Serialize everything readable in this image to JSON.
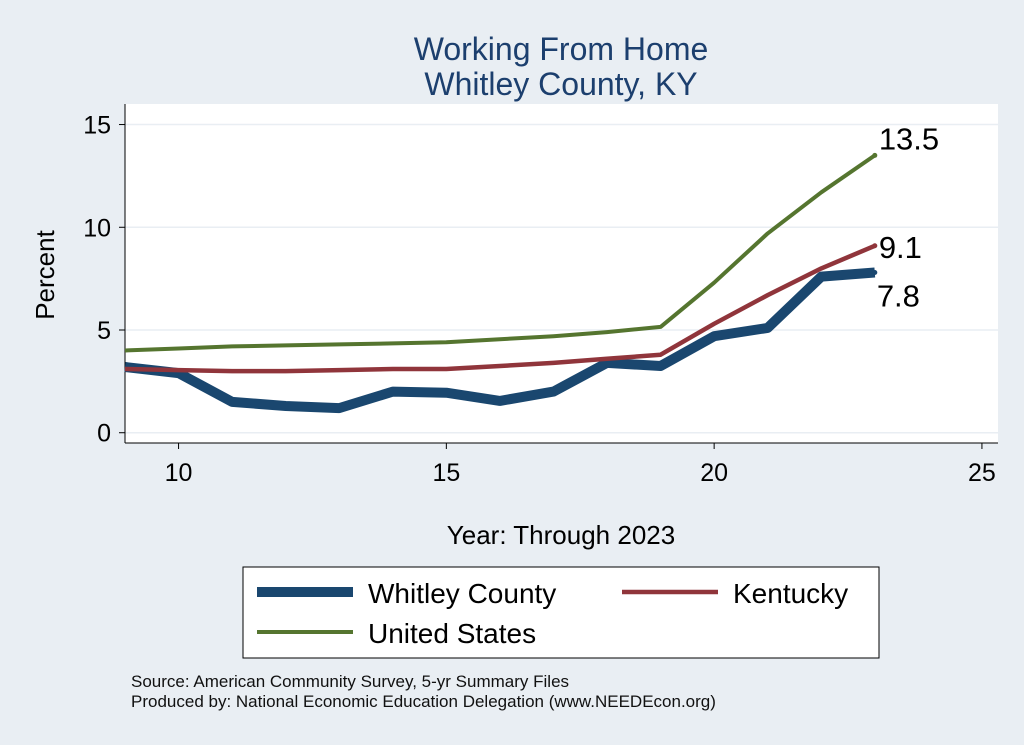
{
  "chart_data": {
    "type": "line",
    "title": "Working From Home",
    "subtitle": "Whitley County, KY",
    "xlabel": "Year: Through 2023",
    "ylabel": "Percent",
    "xlim": [
      9,
      25.3
    ],
    "ylim": [
      -0.5,
      16
    ],
    "xticks": [
      10,
      15,
      20,
      25
    ],
    "yticks": [
      0,
      5,
      10,
      15
    ],
    "grid": true,
    "legend_position": "bottom",
    "x": [
      9,
      10,
      11,
      12,
      13,
      14,
      15,
      16,
      17,
      18,
      19,
      20,
      21,
      22,
      23
    ],
    "series": [
      {
        "name": "Whitley County",
        "color": "#1a476f",
        "values": [
          3.2,
          2.9,
          1.5,
          1.3,
          1.2,
          2.0,
          1.95,
          1.55,
          2.0,
          3.4,
          3.25,
          4.7,
          5.1,
          7.6,
          7.8
        ],
        "end_label": "7.8"
      },
      {
        "name": "Kentucky",
        "color": "#90353b",
        "values": [
          3.1,
          3.05,
          3.0,
          3.0,
          3.05,
          3.1,
          3.1,
          3.25,
          3.4,
          3.6,
          3.8,
          5.3,
          6.7,
          8.0,
          9.1
        ],
        "end_label": "9.1"
      },
      {
        "name": "United States",
        "color": "#55752f",
        "values": [
          4.0,
          4.1,
          4.2,
          4.25,
          4.3,
          4.35,
          4.4,
          4.55,
          4.7,
          4.9,
          5.15,
          7.3,
          9.7,
          11.7,
          13.5
        ],
        "end_label": "13.5"
      }
    ]
  },
  "source_line1": "Source: American Community Survey, 5-yr Summary Files",
  "source_line2": "Produced by: National Economic Education Delegation (www.NEEDEcon.org)"
}
